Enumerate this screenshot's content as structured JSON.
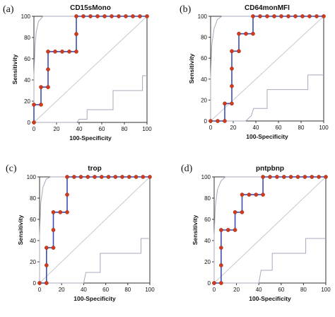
{
  "chart_data": [
    {
      "type": "line",
      "letter": "(a)",
      "title": "CD15sMono",
      "xlabel": "100-Specificity",
      "ylabel": "Sensitivity",
      "xlim": [
        0,
        100
      ],
      "ylim": [
        0,
        100
      ],
      "xticks": [
        0,
        20,
        40,
        60,
        80,
        100
      ],
      "yticks": [
        0,
        20,
        40,
        60,
        80,
        100
      ],
      "roc": [
        [
          0,
          0
        ],
        [
          0,
          16.7
        ],
        [
          6.25,
          16.7
        ],
        [
          6.25,
          33.3
        ],
        [
          12.5,
          33.3
        ],
        [
          12.5,
          50
        ],
        [
          12.5,
          66.7
        ],
        [
          18.75,
          66.7
        ],
        [
          25,
          66.7
        ],
        [
          31.25,
          66.7
        ],
        [
          37.5,
          66.7
        ],
        [
          37.5,
          83.3
        ],
        [
          37.5,
          100
        ],
        [
          43.75,
          100
        ],
        [
          50,
          100
        ],
        [
          56.25,
          100
        ],
        [
          62.5,
          100
        ],
        [
          68.75,
          100
        ],
        [
          75,
          100
        ],
        [
          81.25,
          100
        ],
        [
          87.5,
          100
        ],
        [
          93.75,
          100
        ],
        [
          100,
          100
        ]
      ],
      "points": [
        [
          0,
          0
        ],
        [
          0,
          16.7
        ],
        [
          6.25,
          16.7
        ],
        [
          6.25,
          33.3
        ],
        [
          12.5,
          33.3
        ],
        [
          12.5,
          50
        ],
        [
          12.5,
          66.7
        ],
        [
          18.75,
          66.7
        ],
        [
          25,
          66.7
        ],
        [
          31.25,
          66.7
        ],
        [
          37.5,
          66.7
        ],
        [
          37.5,
          83.3
        ],
        [
          37.5,
          100
        ],
        [
          43.75,
          100
        ],
        [
          50,
          100
        ],
        [
          56.25,
          100
        ],
        [
          62.5,
          100
        ],
        [
          68.75,
          100
        ],
        [
          75,
          100
        ],
        [
          81.25,
          100
        ],
        [
          87.5,
          100
        ],
        [
          93.75,
          100
        ],
        [
          100,
          100
        ]
      ],
      "ci_upper": [
        [
          0,
          0
        ],
        [
          0,
          45
        ],
        [
          1,
          72
        ],
        [
          2,
          85
        ],
        [
          4,
          95
        ],
        [
          8,
          100
        ],
        [
          100,
          100
        ]
      ],
      "ci_lower": [
        [
          0,
          0
        ],
        [
          38,
          0
        ],
        [
          40,
          3
        ],
        [
          47,
          3
        ],
        [
          47,
          12
        ],
        [
          70,
          12
        ],
        [
          70,
          30
        ],
        [
          96,
          30
        ],
        [
          96,
          44
        ],
        [
          100,
          44
        ]
      ]
    },
    {
      "type": "line",
      "letter": "(b)",
      "title": "CD64monMFI",
      "xlabel": "100-Specificity",
      "ylabel": "Sensitivity",
      "xlim": [
        0,
        100
      ],
      "ylim": [
        0,
        100
      ],
      "xticks": [
        0,
        20,
        40,
        60,
        80,
        100
      ],
      "yticks": [
        0,
        20,
        40,
        60,
        80,
        100
      ],
      "roc": [
        [
          0,
          0
        ],
        [
          6.25,
          0
        ],
        [
          12.5,
          0
        ],
        [
          12.5,
          16.7
        ],
        [
          18.75,
          16.7
        ],
        [
          18.75,
          33.3
        ],
        [
          18.75,
          50
        ],
        [
          18.75,
          66.7
        ],
        [
          25,
          66.7
        ],
        [
          25,
          83.3
        ],
        [
          31.25,
          83.3
        ],
        [
          37.5,
          83.3
        ],
        [
          37.5,
          100
        ],
        [
          43.75,
          100
        ],
        [
          50,
          100
        ],
        [
          56.25,
          100
        ],
        [
          62.5,
          100
        ],
        [
          68.75,
          100
        ],
        [
          75,
          100
        ],
        [
          81.25,
          100
        ],
        [
          87.5,
          100
        ],
        [
          93.75,
          100
        ],
        [
          100,
          100
        ]
      ],
      "points": [
        [
          0,
          0
        ],
        [
          6.25,
          0
        ],
        [
          12.5,
          0
        ],
        [
          12.5,
          16.7
        ],
        [
          18.75,
          16.7
        ],
        [
          18.75,
          33.3
        ],
        [
          18.75,
          50
        ],
        [
          18.75,
          66.7
        ],
        [
          25,
          66.7
        ],
        [
          25,
          83.3
        ],
        [
          31.25,
          83.3
        ],
        [
          37.5,
          83.3
        ],
        [
          37.5,
          100
        ],
        [
          43.75,
          100
        ],
        [
          50,
          100
        ],
        [
          56.25,
          100
        ],
        [
          62.5,
          100
        ],
        [
          68.75,
          100
        ],
        [
          75,
          100
        ],
        [
          81.25,
          100
        ],
        [
          87.5,
          100
        ],
        [
          93.75,
          100
        ],
        [
          100,
          100
        ]
      ],
      "ci_upper": [
        [
          0,
          0
        ],
        [
          0,
          42
        ],
        [
          1,
          72
        ],
        [
          3,
          88
        ],
        [
          6,
          97
        ],
        [
          10,
          100
        ],
        [
          100,
          100
        ]
      ],
      "ci_lower": [
        [
          0,
          0
        ],
        [
          31,
          0
        ],
        [
          36,
          5
        ],
        [
          38,
          12
        ],
        [
          50,
          12
        ],
        [
          50,
          30
        ],
        [
          86,
          30
        ],
        [
          86,
          44
        ],
        [
          100,
          44
        ]
      ]
    },
    {
      "type": "line",
      "letter": "(c)",
      "title": "trop",
      "xlabel": "100-Specificity",
      "ylabel": "Sensitivity",
      "xlim": [
        0,
        100
      ],
      "ylim": [
        0,
        100
      ],
      "xticks": [
        0,
        20,
        40,
        60,
        80,
        100
      ],
      "yticks": [
        0,
        20,
        40,
        60,
        80,
        100
      ],
      "roc": [
        [
          0,
          0
        ],
        [
          6.25,
          0
        ],
        [
          6.25,
          16.7
        ],
        [
          6.25,
          33.3
        ],
        [
          12.5,
          33.3
        ],
        [
          12.5,
          50
        ],
        [
          12.5,
          66.7
        ],
        [
          18.75,
          66.7
        ],
        [
          25,
          66.7
        ],
        [
          25,
          83.3
        ],
        [
          25,
          100
        ],
        [
          31.25,
          100
        ],
        [
          37.5,
          100
        ],
        [
          43.75,
          100
        ],
        [
          50,
          100
        ],
        [
          56.25,
          100
        ],
        [
          62.5,
          100
        ],
        [
          68.75,
          100
        ],
        [
          75,
          100
        ],
        [
          81.25,
          100
        ],
        [
          87.5,
          100
        ],
        [
          93.75,
          100
        ],
        [
          100,
          100
        ]
      ],
      "points": [
        [
          0,
          0
        ],
        [
          6.25,
          0
        ],
        [
          6.25,
          16.7
        ],
        [
          6.25,
          33.3
        ],
        [
          12.5,
          33.3
        ],
        [
          12.5,
          50
        ],
        [
          12.5,
          66.7
        ],
        [
          18.75,
          66.7
        ],
        [
          25,
          66.7
        ],
        [
          25,
          83.3
        ],
        [
          25,
          100
        ],
        [
          31.25,
          100
        ],
        [
          37.5,
          100
        ],
        [
          43.75,
          100
        ],
        [
          50,
          100
        ],
        [
          56.25,
          100
        ],
        [
          62.5,
          100
        ],
        [
          68.75,
          100
        ],
        [
          75,
          100
        ],
        [
          81.25,
          100
        ],
        [
          87.5,
          100
        ],
        [
          93.75,
          100
        ],
        [
          100,
          100
        ]
      ],
      "ci_upper": [
        [
          0,
          0
        ],
        [
          0,
          45
        ],
        [
          1,
          75
        ],
        [
          3,
          90
        ],
        [
          6,
          98
        ],
        [
          10,
          100
        ],
        [
          100,
          100
        ]
      ],
      "ci_lower": [
        [
          0,
          0
        ],
        [
          25,
          0
        ],
        [
          40,
          0
        ],
        [
          42,
          10
        ],
        [
          55,
          10
        ],
        [
          55,
          28
        ],
        [
          92,
          28
        ],
        [
          92,
          42
        ],
        [
          100,
          42
        ]
      ]
    },
    {
      "type": "line",
      "letter": "(d)",
      "title": "pntpbnp",
      "xlabel": "100-Specificity",
      "ylabel": "Sensitivity",
      "xlim": [
        0,
        100
      ],
      "ylim": [
        0,
        100
      ],
      "xticks": [
        0,
        20,
        40,
        60,
        80,
        100
      ],
      "yticks": [
        0,
        20,
        40,
        60,
        80,
        100
      ],
      "roc": [
        [
          0,
          0
        ],
        [
          6.25,
          0
        ],
        [
          6.25,
          16.7
        ],
        [
          6.25,
          33.3
        ],
        [
          6.25,
          50
        ],
        [
          12.5,
          50
        ],
        [
          18.75,
          50
        ],
        [
          18.75,
          66.7
        ],
        [
          25,
          66.7
        ],
        [
          25,
          83.3
        ],
        [
          31.25,
          83.3
        ],
        [
          37.5,
          83.3
        ],
        [
          43.75,
          83.3
        ],
        [
          43.75,
          100
        ],
        [
          50,
          100
        ],
        [
          56.25,
          100
        ],
        [
          62.5,
          100
        ],
        [
          68.75,
          100
        ],
        [
          75,
          100
        ],
        [
          81.25,
          100
        ],
        [
          87.5,
          100
        ],
        [
          93.75,
          100
        ],
        [
          100,
          100
        ]
      ],
      "points": [
        [
          0,
          0
        ],
        [
          6.25,
          0
        ],
        [
          6.25,
          16.7
        ],
        [
          6.25,
          33.3
        ],
        [
          6.25,
          50
        ],
        [
          12.5,
          50
        ],
        [
          18.75,
          50
        ],
        [
          18.75,
          66.7
        ],
        [
          25,
          66.7
        ],
        [
          25,
          83.3
        ],
        [
          31.25,
          83.3
        ],
        [
          37.5,
          83.3
        ],
        [
          43.75,
          83.3
        ],
        [
          43.75,
          100
        ],
        [
          50,
          100
        ],
        [
          56.25,
          100
        ],
        [
          62.5,
          100
        ],
        [
          68.75,
          100
        ],
        [
          75,
          100
        ],
        [
          81.25,
          100
        ],
        [
          87.5,
          100
        ],
        [
          93.75,
          100
        ],
        [
          100,
          100
        ]
      ],
      "ci_upper": [
        [
          0,
          0
        ],
        [
          0,
          45
        ],
        [
          1,
          72
        ],
        [
          3,
          88
        ],
        [
          6,
          96
        ],
        [
          10,
          100
        ],
        [
          100,
          100
        ]
      ],
      "ci_lower": [
        [
          0,
          0
        ],
        [
          28,
          0
        ],
        [
          40,
          0
        ],
        [
          42,
          12
        ],
        [
          52,
          12
        ],
        [
          52,
          28
        ],
        [
          82,
          28
        ],
        [
          82,
          42
        ],
        [
          100,
          42
        ]
      ]
    }
  ],
  "colors": {
    "roc_line": "#3a4fb0",
    "point_fill": "#d23a1e",
    "ci_line": "#a9a9bd",
    "diagonal": "#c8c8d2",
    "axis": "#333333"
  }
}
